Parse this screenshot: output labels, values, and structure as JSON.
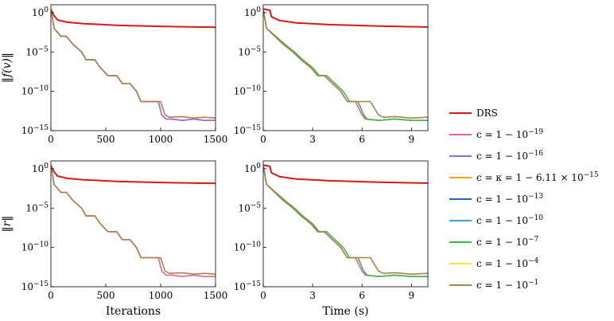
{
  "colors": {
    "DRS": "#d7191c",
    "c19": "#e7609e",
    "c16": "#9b6ad6",
    "ckappa": "#f59f24",
    "c13": "#2c62c9",
    "c10": "#35a3e0",
    "c7": "#41b64a",
    "c4": "#ffe82e",
    "c1": "#a8824f"
  },
  "legend": [
    {
      "key": "DRS",
      "label": "DRS"
    },
    {
      "key": "c19",
      "label": "c = 1 − 10^−19"
    },
    {
      "key": "c16",
      "label": "c = 1 − 10^−16"
    },
    {
      "key": "ckappa",
      "label": "c = κ = 1 − 6.11 × 10^−15"
    },
    {
      "key": "c13",
      "label": "c = 1 − 10^−13"
    },
    {
      "key": "c10",
      "label": "c = 1 − 10^−10"
    },
    {
      "key": "c7",
      "label": "c = 1 − 10^−7"
    },
    {
      "key": "c4",
      "label": "c = 1 − 10^−4"
    },
    {
      "key": "c1",
      "label": "c = 1 − 10^−1"
    }
  ],
  "chart_data": [
    {
      "type": "line",
      "panel": "top-left",
      "xscale": "linear",
      "yscale": "log",
      "ylabel": "‖f(v)‖",
      "xlabel": "",
      "xlim": [
        0,
        1500
      ],
      "ylim": [
        1e-15,
        10
      ],
      "xticks": [
        "0",
        "500",
        "1000",
        "1500"
      ],
      "yticks": [
        "10^0",
        "10^−5",
        "10^−10",
        "10^−15"
      ],
      "series": [
        {
          "key": "DRS",
          "x": [
            0,
            20,
            60,
            150,
            300,
            600,
            1000,
            1500
          ],
          "y": [
            3,
            0.6,
            0.12,
            0.06,
            0.04,
            0.025,
            0.018,
            0.014
          ]
        },
        {
          "key": "c19",
          "x": [
            0,
            30,
            90,
            140,
            200,
            280,
            320,
            400,
            450,
            520,
            600,
            650,
            720,
            780,
            820,
            900,
            920,
            980,
            1010,
            1050,
            1100,
            1200,
            1300,
            1400,
            1500
          ],
          "y": [
            3,
            0.01,
            0.001,
            0.001,
            0.0001,
            1e-05,
            1e-06,
            1e-06,
            1e-07,
            1e-08,
            1e-08,
            1e-09,
            1e-09,
            1e-10,
            5e-12,
            5e-12,
            5e-12,
            5e-12,
            1e-13,
            3e-14,
            3e-14,
            2e-14,
            3e-14,
            2e-14,
            2e-14
          ]
        },
        {
          "key": "c16",
          "x": [
            0,
            30,
            90,
            140,
            200,
            280,
            320,
            400,
            450,
            520,
            600,
            650,
            720,
            780,
            820,
            900,
            920,
            980,
            1010,
            1050,
            1100,
            1200,
            1300,
            1400,
            1500
          ],
          "y": [
            3,
            0.01,
            0.001,
            0.001,
            0.0001,
            1e-05,
            1e-06,
            1e-06,
            1e-07,
            1e-08,
            1e-08,
            1e-09,
            1e-09,
            1e-10,
            5e-12,
            5e-12,
            5e-12,
            5e-12,
            1e-13,
            3e-14,
            3e-14,
            2e-14,
            3e-14,
            2e-14,
            2e-14
          ]
        },
        {
          "key": "c1",
          "x": [
            0,
            30,
            90,
            140,
            200,
            280,
            320,
            400,
            450,
            520,
            600,
            650,
            720,
            780,
            820,
            900,
            1000,
            1040,
            1080,
            1200,
            1300,
            1400,
            1500
          ],
          "y": [
            3,
            0.01,
            0.001,
            0.001,
            0.0001,
            1e-05,
            1e-06,
            1e-06,
            1e-07,
            1e-08,
            1e-08,
            1e-09,
            1e-09,
            1e-10,
            5e-12,
            5e-12,
            5e-12,
            1e-13,
            5e-14,
            6e-14,
            4e-14,
            5e-14,
            4e-14
          ]
        }
      ]
    },
    {
      "type": "line",
      "panel": "top-right",
      "xscale": "linear",
      "yscale": "log",
      "ylabel": "",
      "xlabel": "",
      "xlim": [
        0,
        10
      ],
      "ylim": [
        1e-15,
        10
      ],
      "xticks": [
        "0",
        "3",
        "6",
        "9"
      ],
      "yticks": [
        "10^0",
        "10^−5",
        "10^−10",
        "10^−15"
      ],
      "series": [
        {
          "key": "DRS",
          "x": [
            0,
            0.4,
            0.5,
            1.0,
            2.0,
            4.0,
            7.0,
            10.0
          ],
          "y": [
            3,
            2,
            0.3,
            0.1,
            0.05,
            0.03,
            0.02,
            0.015
          ]
        },
        {
          "key": "c19",
          "x": [
            0,
            0.2,
            0.7,
            1.2,
            1.8,
            2.3,
            2.9,
            3.3,
            3.7,
            4.2,
            4.7,
            5.1,
            5.6,
            6.0,
            6.2,
            7.0,
            8.0,
            9.0,
            10.0
          ],
          "y": [
            3,
            0.01,
            0.001,
            0.0001,
            1e-05,
            1e-06,
            1e-07,
            1e-08,
            1e-08,
            1e-09,
            1e-10,
            5e-12,
            5e-12,
            1e-13,
            3e-14,
            2e-14,
            3e-14,
            2e-14,
            2e-14
          ]
        },
        {
          "key": "c7",
          "x": [
            0,
            0.2,
            0.75,
            1.3,
            1.9,
            2.4,
            3.0,
            3.4,
            3.85,
            4.35,
            4.85,
            5.25,
            5.75,
            6.1,
            6.3,
            7.0,
            8.0,
            9.0,
            10.0
          ],
          "y": [
            3,
            0.01,
            0.001,
            0.0001,
            1e-05,
            1e-06,
            1e-07,
            1e-08,
            1e-08,
            1e-09,
            1e-10,
            5e-12,
            5e-12,
            1e-13,
            3e-14,
            2e-14,
            3e-14,
            2e-14,
            2e-14
          ]
        },
        {
          "key": "c1",
          "x": [
            0,
            0.2,
            0.7,
            1.2,
            1.8,
            2.3,
            2.9,
            3.3,
            3.7,
            4.2,
            4.7,
            5.1,
            6.5,
            7.0,
            7.3,
            8.0,
            9.0,
            10.0
          ],
          "y": [
            3,
            0.01,
            0.001,
            0.0001,
            1e-05,
            1e-06,
            1e-07,
            1e-08,
            1e-08,
            1e-09,
            1e-10,
            5e-12,
            5e-12,
            1e-13,
            5e-14,
            6e-14,
            4e-14,
            5e-14
          ]
        }
      ]
    },
    {
      "type": "line",
      "panel": "bottom-left",
      "xscale": "linear",
      "yscale": "log",
      "ylabel": "‖r‖",
      "xlabel": "Iterations",
      "xlim": [
        0,
        1500
      ],
      "ylim": [
        1e-15,
        10
      ],
      "xticks": [
        "0",
        "500",
        "1000",
        "1500"
      ],
      "yticks": [
        "10^0",
        "10^−5",
        "10^−10",
        "10^−15"
      ],
      "series": [
        {
          "key": "DRS",
          "x": [
            0,
            20,
            60,
            150,
            300,
            600,
            1000,
            1500
          ],
          "y": [
            3,
            0.6,
            0.12,
            0.06,
            0.04,
            0.025,
            0.018,
            0.014
          ]
        },
        {
          "key": "c19",
          "x": [
            0,
            30,
            90,
            140,
            200,
            280,
            320,
            400,
            450,
            520,
            600,
            650,
            720,
            780,
            820,
            900,
            920,
            980,
            1010,
            1050,
            1100,
            1200,
            1300,
            1400,
            1500
          ],
          "y": [
            3,
            0.01,
            0.001,
            0.001,
            0.0001,
            1e-05,
            1e-06,
            1e-06,
            1e-07,
            1e-08,
            1e-08,
            1e-09,
            1e-09,
            1e-10,
            5e-12,
            5e-12,
            5e-12,
            5e-12,
            1e-13,
            3e-14,
            3e-14,
            2e-14,
            3e-14,
            2e-14,
            2e-14
          ]
        },
        {
          "key": "c1",
          "x": [
            0,
            30,
            90,
            140,
            200,
            280,
            320,
            400,
            450,
            520,
            600,
            650,
            720,
            780,
            820,
            900,
            1000,
            1040,
            1080,
            1200,
            1300,
            1400,
            1500
          ],
          "y": [
            3,
            0.01,
            0.001,
            0.001,
            0.0001,
            1e-05,
            1e-06,
            1e-06,
            1e-07,
            1e-08,
            1e-08,
            1e-09,
            1e-09,
            1e-10,
            5e-12,
            5e-12,
            5e-12,
            1e-13,
            5e-14,
            6e-14,
            4e-14,
            5e-14,
            4e-14
          ]
        }
      ]
    },
    {
      "type": "line",
      "panel": "bottom-right",
      "xscale": "linear",
      "yscale": "log",
      "ylabel": "",
      "xlabel": "Time (s)",
      "xlim": [
        0,
        10
      ],
      "ylim": [
        1e-15,
        10
      ],
      "xticks": [
        "0",
        "3",
        "6",
        "9"
      ],
      "yticks": [
        "10^0",
        "10^−5",
        "10^−10",
        "10^−15"
      ],
      "series": [
        {
          "key": "DRS",
          "x": [
            0,
            0.4,
            0.5,
            1.0,
            2.0,
            4.0,
            7.0,
            10.0
          ],
          "y": [
            3,
            2,
            0.3,
            0.1,
            0.05,
            0.03,
            0.02,
            0.015
          ]
        },
        {
          "key": "c19",
          "x": [
            0,
            0.2,
            0.7,
            1.2,
            1.8,
            2.3,
            2.9,
            3.3,
            3.7,
            4.2,
            4.7,
            5.1,
            5.6,
            6.0,
            6.2,
            7.0,
            8.0,
            9.0,
            10.0
          ],
          "y": [
            3,
            0.01,
            0.001,
            0.0001,
            1e-05,
            1e-06,
            1e-07,
            1e-08,
            1e-08,
            1e-09,
            1e-10,
            5e-12,
            5e-12,
            1e-13,
            3e-14,
            2e-14,
            3e-14,
            2e-14,
            2e-14
          ]
        },
        {
          "key": "c7",
          "x": [
            0,
            0.2,
            0.75,
            1.3,
            1.9,
            2.4,
            3.0,
            3.4,
            3.85,
            4.35,
            4.85,
            5.25,
            5.75,
            6.1,
            6.3,
            7.0,
            8.0,
            9.0,
            10.0
          ],
          "y": [
            3,
            0.01,
            0.001,
            0.0001,
            1e-05,
            1e-06,
            1e-07,
            1e-08,
            1e-08,
            1e-09,
            1e-10,
            5e-12,
            5e-12,
            1e-13,
            3e-14,
            2e-14,
            3e-14,
            2e-14,
            2e-14
          ]
        },
        {
          "key": "c1",
          "x": [
            0,
            0.2,
            0.7,
            1.2,
            1.8,
            2.3,
            2.9,
            3.3,
            3.7,
            4.2,
            4.7,
            5.1,
            6.5,
            7.0,
            7.3,
            8.0,
            9.0,
            10.0
          ],
          "y": [
            3,
            0.01,
            0.001,
            0.0001,
            1e-05,
            1e-06,
            1e-07,
            1e-08,
            1e-08,
            1e-09,
            1e-10,
            5e-12,
            5e-12,
            1e-13,
            5e-14,
            6e-14,
            4e-14,
            5e-14
          ]
        }
      ]
    }
  ]
}
